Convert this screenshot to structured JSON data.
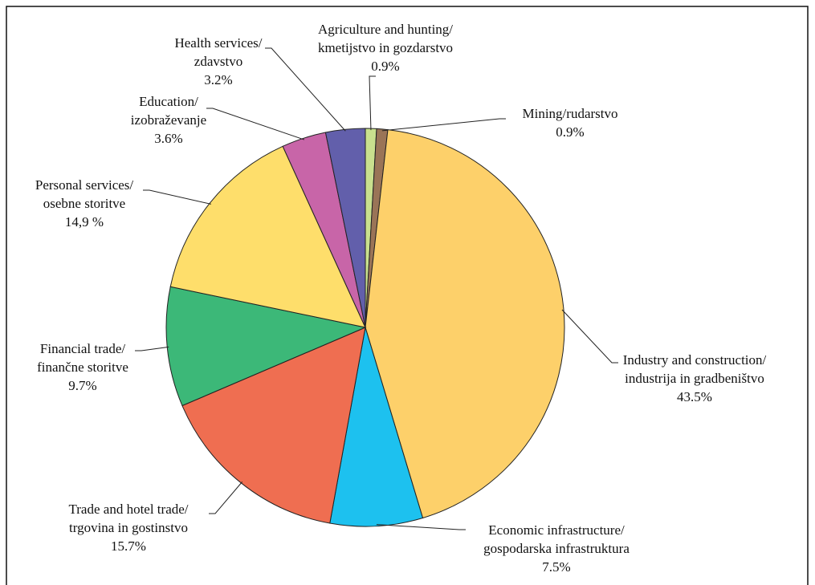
{
  "chart_data": {
    "type": "pie",
    "categories": [
      "Agriculture and hunting/ kmetijstvo in gozdarstvo",
      "Mining/rudarstvo",
      "Industry and construction/ industrija in gradbeništvo",
      "Economic infrastructure/ gospodarska infrastruktura",
      "Trade and hotel trade/ trgovina in gostinstvo",
      "Financial trade/ finančne storitve",
      "Personal services/ osebne storitve",
      "Education/ izobraževanje",
      "Health services/ zdavstvo"
    ],
    "values": [
      0.9,
      0.9,
      43.5,
      7.5,
      15.7,
      9.7,
      14.9,
      3.6,
      3.2
    ],
    "value_labels": [
      "0.9%",
      "0.9%",
      "43.5%",
      "7.5%",
      "15.7%",
      "9.7%",
      "14,9 %",
      "3.6%",
      "3.2%"
    ],
    "colors": [
      "#c9e08e",
      "#9a7457",
      "#fdd06a",
      "#1dc1ef",
      "#ef6e51",
      "#3cb878",
      "#fede6b",
      "#c865a8",
      "#625fab"
    ]
  }
}
